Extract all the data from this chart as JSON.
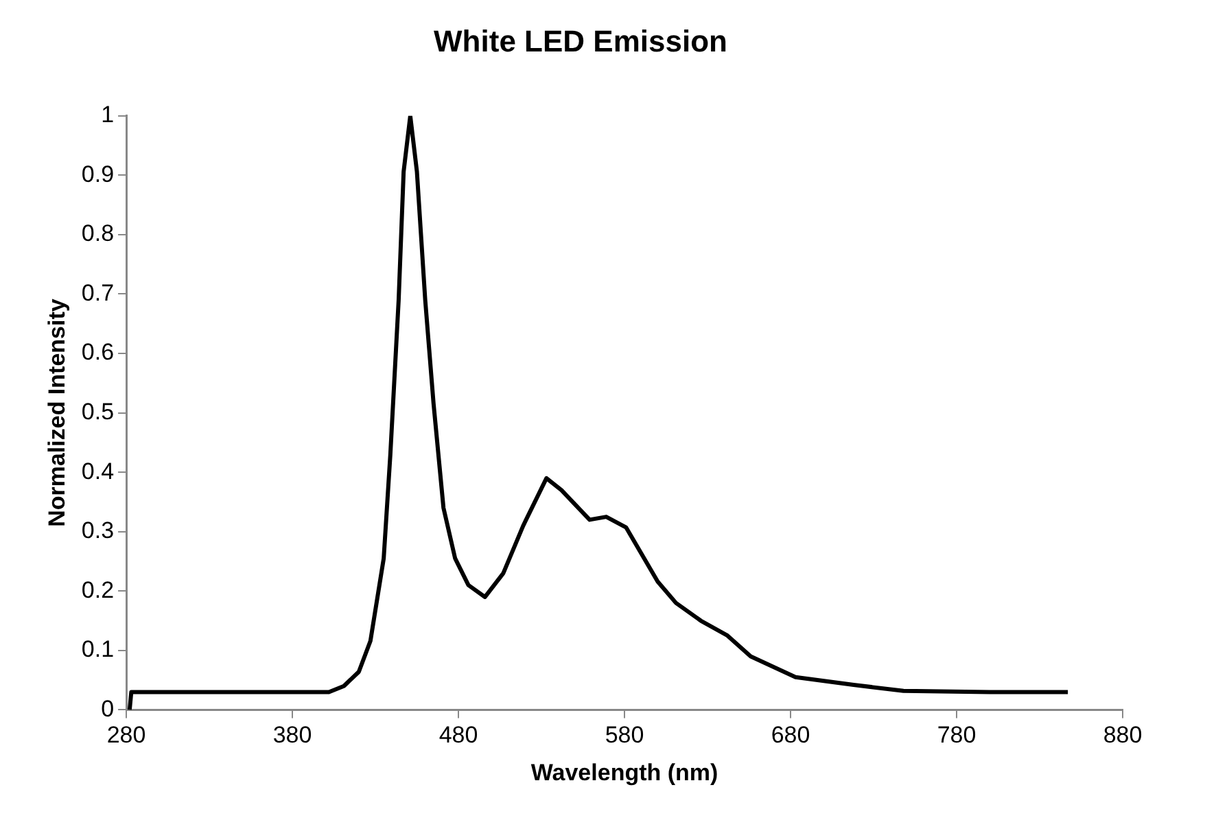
{
  "chart_data": {
    "type": "line",
    "title": "White LED Emission",
    "xlabel": "Wavelength (nm)",
    "ylabel": "Normalized Intensity",
    "series": [
      {
        "color": "#000000",
        "x": [
          282,
          283,
          300,
          350,
          402,
          411,
          420,
          427,
          435,
          439,
          444,
          447,
          451,
          455,
          460,
          465,
          471,
          478,
          486,
          496,
          507,
          519,
          533,
          542,
          559,
          569,
          581,
          600,
          611,
          626,
          642,
          656,
          683,
          718,
          748,
          800,
          847
        ],
        "values": [
          0,
          0.03,
          0.03,
          0.03,
          0.03,
          0.04,
          0.064,
          0.116,
          0.255,
          0.43,
          0.69,
          0.906,
          1,
          0.906,
          0.69,
          0.516,
          0.34,
          0.255,
          0.21,
          0.19,
          0.23,
          0.31,
          0.39,
          0.37,
          0.32,
          0.325,
          0.307,
          0.216,
          0.18,
          0.15,
          0.125,
          0.09,
          0.055,
          0.042,
          0.032,
          0.03,
          0.03
        ]
      }
    ],
    "xlim": [
      280,
      880
    ],
    "xticks": [
      280,
      380,
      480,
      580,
      680,
      780,
      880
    ],
    "ylim": [
      0,
      1
    ],
    "yticks": [
      0,
      0.1,
      0.2,
      0.3,
      0.4,
      0.5,
      0.6,
      0.7,
      0.8,
      0.9,
      1
    ],
    "grid": false,
    "legend": false,
    "marker": "none",
    "line_style": "solid"
  }
}
